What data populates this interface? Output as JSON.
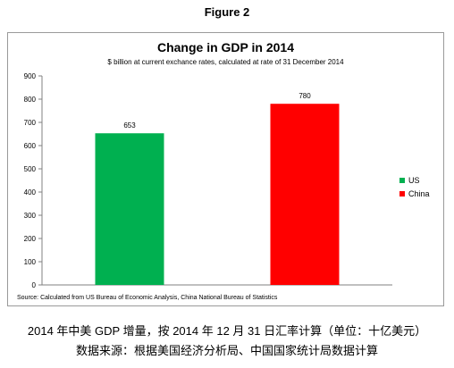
{
  "figure_label": "Figure 2",
  "chart_data": {
    "type": "bar",
    "title": "Change in GDP in 2014",
    "subtitle": "$ billion at current exchance rates, calculated at rate of 31 December 2014",
    "categories": [
      "US",
      "China"
    ],
    "values": [
      653,
      780
    ],
    "value_labels": [
      "653",
      "780"
    ],
    "colors": [
      "#00b050",
      "#ff0000"
    ],
    "ylim": [
      0,
      900
    ],
    "yticks": [
      0,
      100,
      200,
      300,
      400,
      500,
      600,
      700,
      800,
      900
    ],
    "grid": false,
    "legend": {
      "position": "right",
      "entries": [
        {
          "label": "US",
          "color": "#00b050"
        },
        {
          "label": "China",
          "color": "#ff0000"
        }
      ]
    },
    "source": "Source: Calculated from US Bureau of Economic Analysis, China National Bureau of Statistics"
  },
  "caption": {
    "line1": "2014 年中美 GDP 增量，按 2014 年 12 月 31 日汇率计算（单位：十亿美元）",
    "line2": "数据来源：根据美国经济分析局、中国国家统计局数据计算"
  }
}
